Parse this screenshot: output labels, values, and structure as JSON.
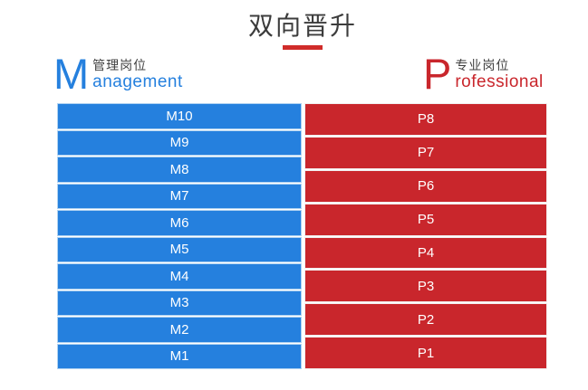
{
  "title": {
    "text": "双向晋升"
  },
  "management": {
    "initial": "M",
    "label_zh": "管理岗位",
    "label_en_rest": "anagement",
    "levels": [
      "M10",
      "M9",
      "M8",
      "M7",
      "M6",
      "M5",
      "M4",
      "M3",
      "M2",
      "M1"
    ]
  },
  "professional": {
    "initial": "P",
    "label_zh": "专业岗位",
    "label_en_rest": "rofessional",
    "levels": [
      "P8",
      "P7",
      "P6",
      "P5",
      "P4",
      "P3",
      "P2",
      "P1"
    ]
  },
  "colors": {
    "management_blue": "#2580DE",
    "management_border": "#AFD2F1",
    "professional_red": "#C9262C",
    "professional_border": "#F1EEEE",
    "title_text": "#3C3C3C",
    "underline_red": "#D02C2A",
    "label_zh_gray": "#3F3F3F",
    "bar_text": "#FFFFFF"
  }
}
